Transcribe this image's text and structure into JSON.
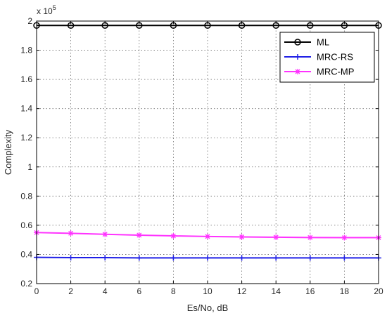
{
  "chart_data": {
    "type": "line",
    "xlabel": "Es/No, dB",
    "ylabel": "Complexity",
    "exponent_label": "x 10",
    "exponent_power": "5",
    "xlim": [
      0,
      20
    ],
    "ylim": [
      0.2,
      2
    ],
    "x": [
      0,
      2,
      4,
      6,
      8,
      10,
      12,
      14,
      16,
      18,
      20
    ],
    "x_ticks": [
      "0",
      "2",
      "4",
      "6",
      "8",
      "10",
      "12",
      "14",
      "16",
      "18",
      "20"
    ],
    "y_ticks": [
      "0.2",
      "0.4",
      "0.6",
      "0.8",
      "1",
      "1.2",
      "1.4",
      "1.6",
      "1.8",
      "2"
    ],
    "y_tick_values": [
      0.2,
      0.4,
      0.6,
      0.8,
      1.0,
      1.2,
      1.4,
      1.6,
      1.8,
      2.0
    ],
    "grid": true,
    "legend_position": "top-right",
    "series": [
      {
        "name": "ML",
        "marker": "circle",
        "color": "#000000",
        "values": [
          1.97,
          1.97,
          1.97,
          1.97,
          1.97,
          1.97,
          1.97,
          1.97,
          1.97,
          1.97,
          1.97
        ]
      },
      {
        "name": "MRC-RS",
        "marker": "plus",
        "color": "#1f1fe6",
        "values": [
          0.38,
          0.378,
          0.378,
          0.376,
          0.376,
          0.376,
          0.376,
          0.376,
          0.376,
          0.376,
          0.376
        ]
      },
      {
        "name": "MRC-MP",
        "marker": "star",
        "color": "#ff33ff",
        "values": [
          0.55,
          0.545,
          0.538,
          0.532,
          0.527,
          0.523,
          0.52,
          0.518,
          0.516,
          0.515,
          0.515
        ]
      }
    ]
  }
}
